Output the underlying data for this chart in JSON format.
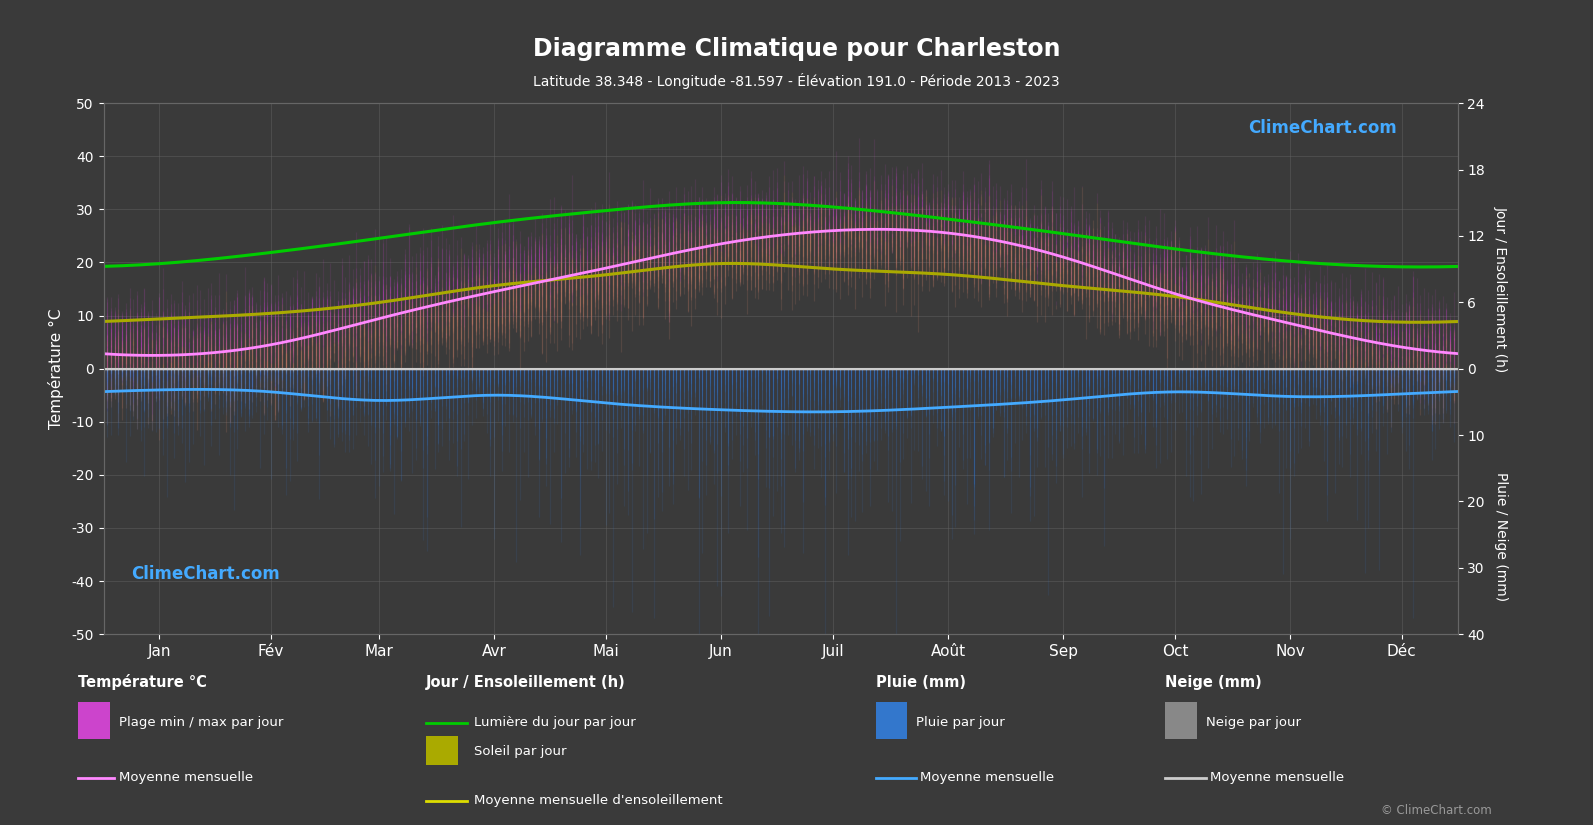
{
  "title": "Diagramme Climatique pour Charleston",
  "subtitle": "Latitude 38.348 - Longitude -81.597 - Élévation 191.0 - Période 2013 - 2023",
  "bg_color": "#3a3a3a",
  "plot_bg_color": "#3a3a3a",
  "text_color": "#ffffff",
  "grid_color": "#666666",
  "months": [
    "Jan",
    "Fév",
    "Mar",
    "Avr",
    "Mai",
    "Jun",
    "Juil",
    "Août",
    "Sep",
    "Oct",
    "Nov",
    "Déc"
  ],
  "month_positions": [
    15,
    45,
    74,
    105,
    135,
    166,
    196,
    227,
    258,
    288,
    319,
    349
  ],
  "temp_ylim": [
    -50,
    50
  ],
  "sun_ylim": [
    0,
    24
  ],
  "temp_min_mean": [
    -2.5,
    -0.5,
    4.5,
    9.5,
    14.5,
    19.0,
    21.5,
    21.0,
    16.5,
    9.5,
    4.0,
    -0.5
  ],
  "temp_max_mean": [
    7.5,
    9.5,
    14.5,
    19.5,
    24.0,
    28.0,
    30.0,
    29.5,
    25.0,
    19.0,
    13.0,
    8.5
  ],
  "daylight_mean": [
    9.5,
    10.5,
    11.8,
    13.2,
    14.3,
    15.0,
    14.6,
    13.5,
    12.2,
    10.8,
    9.7,
    9.2
  ],
  "sunshine_mean": [
    4.5,
    5.0,
    6.0,
    7.5,
    8.5,
    9.5,
    9.0,
    8.5,
    7.5,
    6.5,
    5.0,
    4.2
  ],
  "temp_avg_mean": [
    2.5,
    4.5,
    9.5,
    14.5,
    19.0,
    23.5,
    26.0,
    25.5,
    21.0,
    14.0,
    8.5,
    4.0
  ],
  "snow_mean_monthly": [
    0.0,
    0.0,
    0.0,
    0.0,
    0.0,
    0.0,
    0.0,
    0.0,
    0.0,
    0.0,
    0.0,
    0.0
  ],
  "rain_mean_monthly_mm": [
    3.2,
    3.5,
    4.8,
    4.0,
    5.2,
    6.2,
    6.5,
    5.8,
    4.7,
    3.5,
    4.2,
    3.8
  ],
  "temp_color": "#dd44dd",
  "sunshine_color": "#aaaa00",
  "daylight_color": "#00cc00",
  "avg_temp_color": "#ff88ff",
  "rain_color": "#3377cc",
  "snow_color": "#aaaaaa",
  "rain_mean_color": "#44aaff",
  "snow_mean_color": "#cccccc"
}
